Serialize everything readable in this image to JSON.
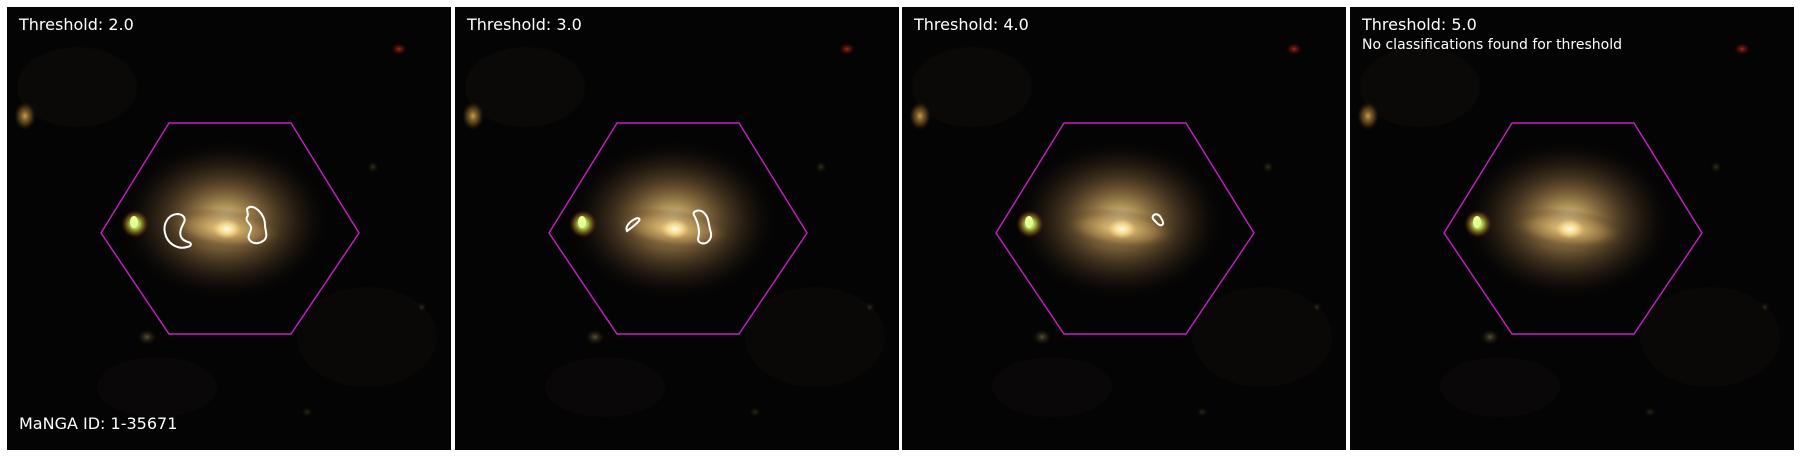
{
  "panels": [
    {
      "threshold": "Threshold: 2.0",
      "note": "",
      "contours": "a"
    },
    {
      "threshold": "Threshold: 3.0",
      "note": "",
      "contours": "b"
    },
    {
      "threshold": "Threshold: 4.0",
      "note": "",
      "contours": "c"
    },
    {
      "threshold": "Threshold: 5.0",
      "note": "No classifications found for threshold",
      "contours": "none"
    }
  ],
  "manga_id": "MaNGA ID: 1-35671",
  "colors": {
    "hexagon": "#c81ec8",
    "contour": "#ffffff",
    "background": "#050404"
  }
}
